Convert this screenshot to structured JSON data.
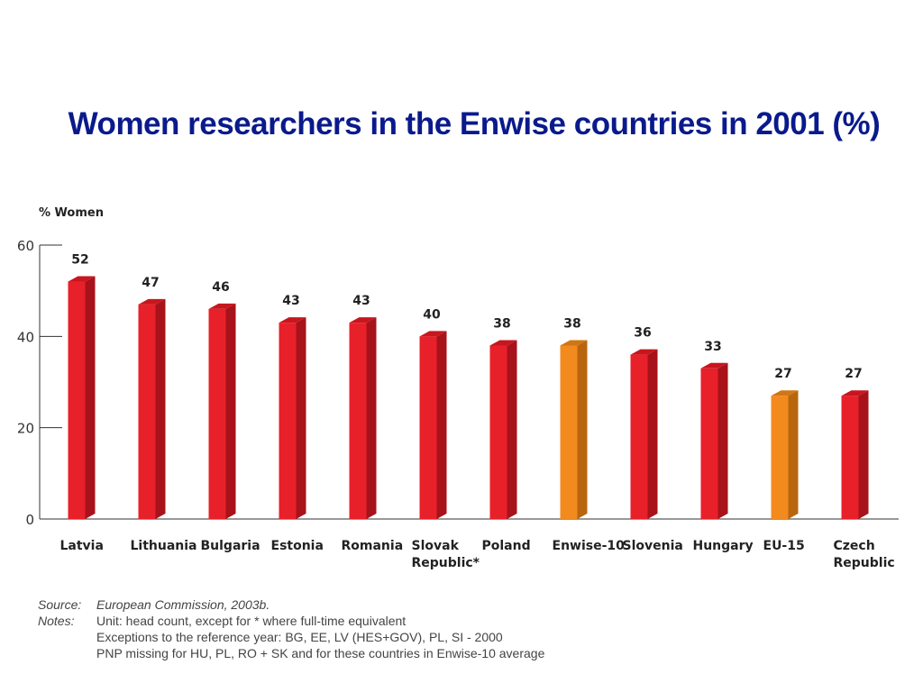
{
  "title": "Women researchers in the Enwise countries in 2001 (%)",
  "chart_data": {
    "type": "bar",
    "ylabel": "% Women",
    "ylim": [
      0,
      60
    ],
    "yticks": [
      0,
      20,
      40,
      60
    ],
    "categories": [
      [
        "Latvia"
      ],
      [
        "Lithuania"
      ],
      [
        "Bulgaria"
      ],
      [
        "Estonia"
      ],
      [
        "Romania"
      ],
      [
        "Slovak",
        "Republic*"
      ],
      [
        "Poland"
      ],
      [
        "Enwise-10"
      ],
      [
        "Slovenia"
      ],
      [
        "Hungary"
      ],
      [
        "EU-15"
      ],
      [
        "Czech",
        "Republic"
      ]
    ],
    "values": [
      52,
      47,
      46,
      43,
      43,
      40,
      38,
      38,
      36,
      33,
      27,
      27
    ],
    "highlight": [
      false,
      false,
      false,
      false,
      false,
      false,
      false,
      true,
      false,
      false,
      true,
      false
    ],
    "colors": {
      "default_front": "#e8202a",
      "default_side": "#a8121a",
      "default_top": "#c8161e",
      "highlight_front": "#f28a1e",
      "highlight_side": "#b8660e",
      "highlight_top": "#d07614"
    }
  },
  "notes": {
    "source_label": "Source:",
    "source_text": "European Commission, 2003b.",
    "notes_label": "Notes:",
    "lines": [
      "Unit: head count, except for * where full-time equivalent",
      "Exceptions to the reference year: BG, EE, LV (HES+GOV), PL, SI - 2000",
      "PNP missing for HU, PL, RO + SK and for these countries in Enwise-10 average"
    ]
  }
}
